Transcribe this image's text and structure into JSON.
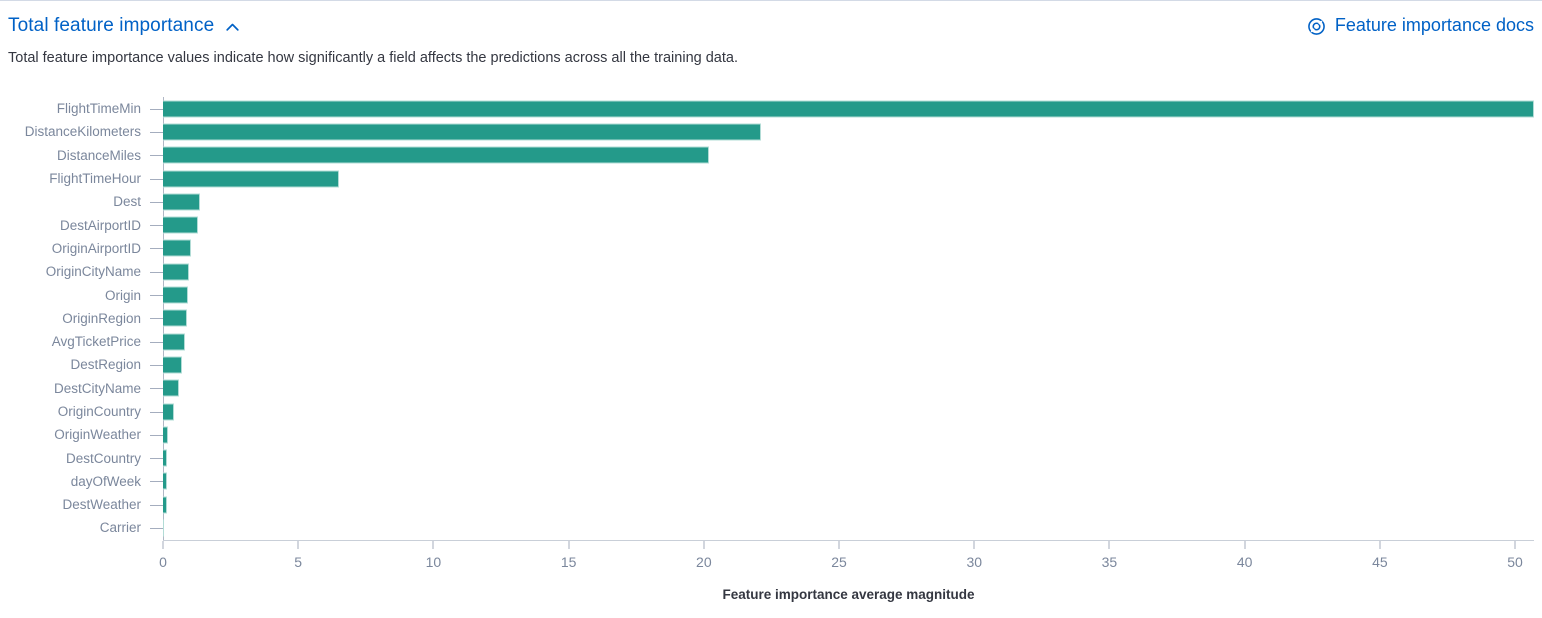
{
  "header": {
    "title": "Total feature importance",
    "collapse_icon": "chevron-up-icon",
    "docs_link_label": "Feature importance docs",
    "docs_link_icon": "lifebuoy-icon"
  },
  "description": "Total feature importance values indicate how significantly a field affects the predictions across all the training data.",
  "colors": {
    "bar": "#249a8a",
    "link_blue": "#0061c6",
    "axis_label": "#7b879c",
    "axis_line": "#b0b7c5",
    "text": "#343741"
  },
  "chart_data": {
    "type": "bar",
    "orientation": "horizontal",
    "title": "",
    "xlabel": "Feature importance average magnitude",
    "ylabel": "",
    "categories": [
      "FlightTimeMin",
      "DistanceKilometers",
      "DistanceMiles",
      "FlightTimeHour",
      "Dest",
      "DestAirportID",
      "OriginAirportID",
      "OriginCityName",
      "Origin",
      "OriginRegion",
      "AvgTicketPrice",
      "DestRegion",
      "DestCityName",
      "OriginCountry",
      "OriginWeather",
      "DestCountry",
      "dayOfWeek",
      "DestWeather",
      "Carrier"
    ],
    "values": [
      50.7,
      22.1,
      20.2,
      6.5,
      1.35,
      1.3,
      1.05,
      0.95,
      0.92,
      0.88,
      0.83,
      0.7,
      0.6,
      0.42,
      0.2,
      0.16,
      0.15,
      0.13,
      0.05
    ],
    "xlim": [
      0,
      50.7
    ],
    "xticks": [
      0,
      5,
      10,
      15,
      20,
      25,
      30,
      35,
      40,
      45,
      50
    ],
    "grid": false,
    "legend": "none"
  }
}
